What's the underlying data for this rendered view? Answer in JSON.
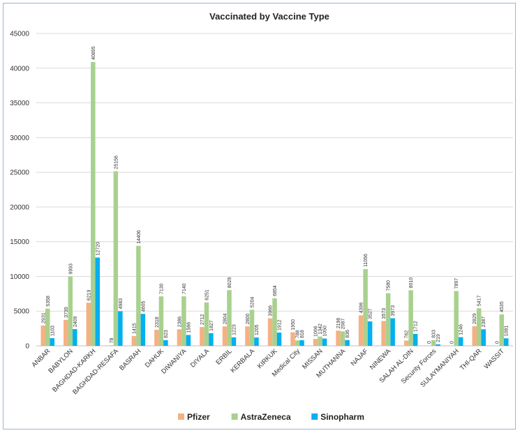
{
  "chart_data": {
    "type": "bar",
    "title": "Vaccinated by Vaccine Type",
    "xlabel": "",
    "ylabel": "",
    "ylim": [
      0,
      45000
    ],
    "yticks": [
      0,
      5000,
      10000,
      15000,
      20000,
      25000,
      30000,
      35000,
      40000,
      45000
    ],
    "grid": true,
    "legend_position": "bottom",
    "categories": [
      "ANBAR",
      "BABYLON",
      "BAGHDAD-KARKH",
      "BAGHDAD-RESAFA",
      "BASRAH",
      "DAHUK",
      "DIWANIYA",
      "DIYALA",
      "ERBIL",
      "KERBALA",
      "KIRKUK",
      "Medical City",
      "MISSAN",
      "MUTHANNA",
      "NAJAF",
      "NINEWA",
      "SALAH AL-DIN",
      "Security Forces",
      "SULAYMANIYAH",
      "THI-QAR",
      "WASSIT"
    ],
    "series": [
      {
        "name": "Pfizer",
        "color": "#f4b183",
        "values": [
          2931,
          3739,
          6219,
          78,
          1415,
          2318,
          2386,
          2712,
          2804,
          2800,
          3966,
          1950,
          1006,
          2196,
          4396,
          3573,
          762,
          0,
          0,
          2829,
          0
        ]
      },
      {
        "name": "AstraZeneca",
        "color": "#a9d18e",
        "values": [
          5358,
          9993,
          40895,
          25156,
          14406,
          7130,
          7140,
          6251,
          8029,
          5204,
          6854,
          788,
          1342,
          2087,
          11056,
          7580,
          8010,
          833,
          7897,
          5417,
          4535
        ]
      },
      {
        "name": "Sinopharm",
        "color": "#00b0f0",
        "values": [
          1103,
          2409,
          12720,
          4983,
          4605,
          823,
          1566,
          1827,
          1223,
          1205,
          1912,
          818,
          1050,
          836,
          3527,
          3973,
          1712,
          219,
          1246,
          2387,
          1081
        ]
      }
    ]
  }
}
